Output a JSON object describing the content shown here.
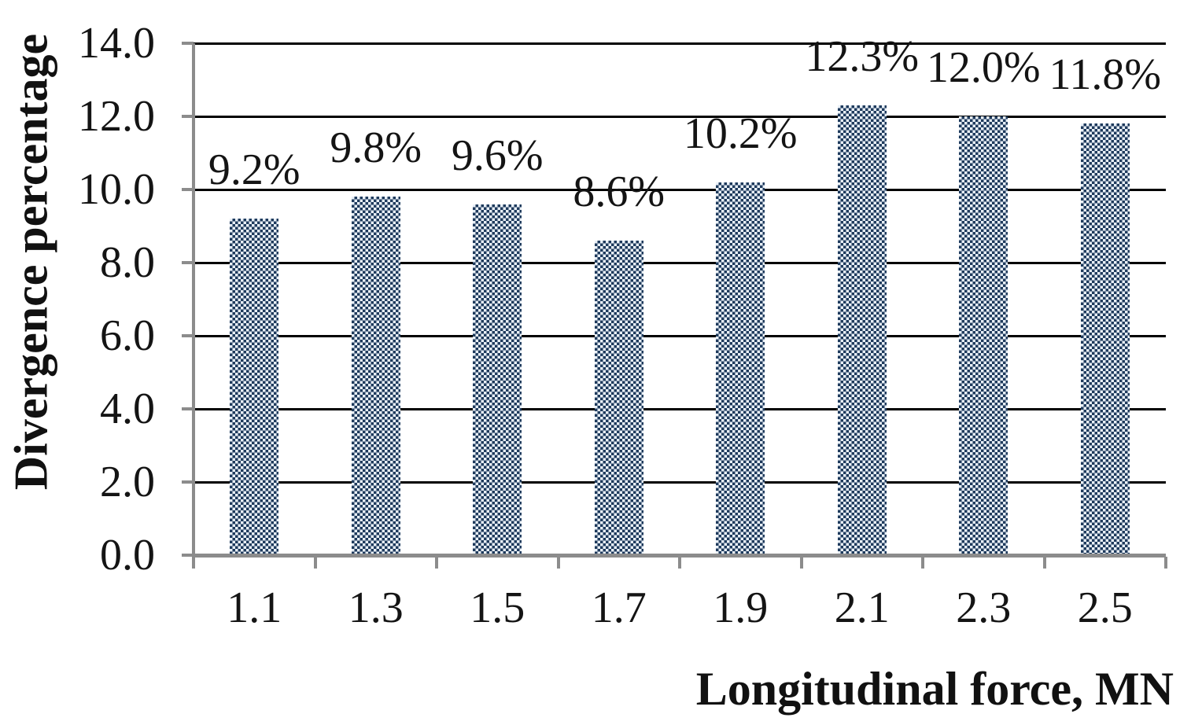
{
  "chart_data": {
    "type": "bar",
    "title": "",
    "categories": [
      "1.1",
      "1.3",
      "1.5",
      "1.7",
      "1.9",
      "2.1",
      "2.3",
      "2.5"
    ],
    "values": [
      9.2,
      9.8,
      9.6,
      8.6,
      10.2,
      12.3,
      12.0,
      11.8
    ],
    "data_labels": [
      "9.2%",
      "9.8%",
      "9.6%",
      "8.6%",
      "10.2%",
      "12.3%",
      "12.0%",
      "11.8%"
    ],
    "xlabel": "Longitudinal force, MN",
    "ylabel": "Divergence percentage",
    "ylim": [
      0,
      14
    ],
    "ytick_step": 2,
    "ytick_labels": [
      "0.0",
      "2.0",
      "4.0",
      "6.0",
      "8.0",
      "10.0",
      "12.0",
      "14.0"
    ],
    "grid": true,
    "gridline_orientation": "horizontal",
    "legend": "none",
    "bar_pattern": "small-checkerboard",
    "colors": {
      "bar_dark": "#1e3a5c",
      "bar_light": "#e9f0f7",
      "gridline": "#000000",
      "axis": "#8c8c8c",
      "text": "#141414"
    }
  }
}
